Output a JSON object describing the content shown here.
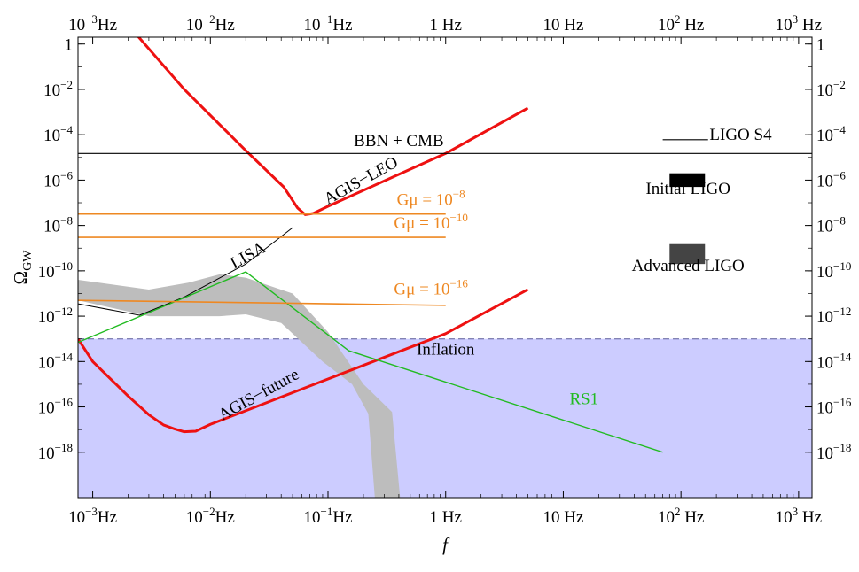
{
  "chart_data": {
    "type": "line",
    "title": "",
    "xlabel": "f",
    "ylabel": "Ω",
    "ylabel_sub": "GW",
    "x_scale": "log",
    "y_scale": "log",
    "xlim": [
      0.00075,
      1300
    ],
    "ylim": [
      1e-20,
      2
    ],
    "x_ticks": [
      {
        "value": 0.001,
        "base": "10",
        "exp": "−3",
        "unit": "Hz"
      },
      {
        "value": 0.01,
        "base": "10",
        "exp": "−2",
        "unit": "Hz"
      },
      {
        "value": 0.1,
        "base": "10",
        "exp": "−1",
        "unit": "Hz"
      },
      {
        "value": 1,
        "base": "1 Hz",
        "exp": "",
        "unit": ""
      },
      {
        "value": 10,
        "base": "10 Hz",
        "exp": "",
        "unit": ""
      },
      {
        "value": 100,
        "base": "10",
        "exp": "2",
        "unit": " Hz"
      },
      {
        "value": 1000,
        "base": "10",
        "exp": "3",
        "unit": " Hz"
      }
    ],
    "y_ticks": [
      {
        "value": 1,
        "base": "1",
        "exp": ""
      },
      {
        "value": 0.01,
        "base": "10",
        "exp": "−2"
      },
      {
        "value": 0.0001,
        "base": "10",
        "exp": "−4"
      },
      {
        "value": 1e-06,
        "base": "10",
        "exp": "−6"
      },
      {
        "value": 1e-08,
        "base": "10",
        "exp": "−8"
      },
      {
        "value": 1e-10,
        "base": "10",
        "exp": "−10"
      },
      {
        "value": 1e-12,
        "base": "10",
        "exp": "−12"
      },
      {
        "value": 1e-14,
        "base": "10",
        "exp": "−14"
      },
      {
        "value": 1e-16,
        "base": "10",
        "exp": "−16"
      },
      {
        "value": 1e-18,
        "base": "10",
        "exp": "−18"
      }
    ],
    "regions": [
      {
        "id": "inflation",
        "label": "Inflation",
        "type": "below",
        "y": 1e-13,
        "color": "#ccccff",
        "border": "#5a5a9a"
      }
    ],
    "bands": [
      {
        "id": "gray-band",
        "color": "#bdbdbd",
        "upper": [
          [
            0.00075,
            4e-11
          ],
          [
            0.003,
            1.5e-11
          ],
          [
            0.0065,
            3e-11
          ],
          [
            0.012,
            7e-11
          ],
          [
            0.02,
            5e-11
          ],
          [
            0.05,
            1e-11
          ],
          [
            0.1,
            2e-13
          ],
          [
            0.2,
            1e-15
          ],
          [
            0.35,
            6e-17
          ],
          [
            0.41,
            1e-20
          ]
        ],
        "lower": [
          [
            0.00075,
            5e-12
          ],
          [
            0.003,
            1e-12
          ],
          [
            0.012,
            1e-12
          ],
          [
            0.02,
            1.2e-12
          ],
          [
            0.04,
            5e-13
          ],
          [
            0.09,
            1e-14
          ],
          [
            0.16,
            1e-15
          ],
          [
            0.22,
            5e-17
          ],
          [
            0.25,
            1e-20
          ]
        ]
      }
    ],
    "series": [
      {
        "id": "agis-leo",
        "color": "#ee1111",
        "width": 3,
        "points": [
          [
            0.0023,
            3
          ],
          [
            0.006,
            0.01
          ],
          [
            0.02,
            2e-05
          ],
          [
            0.042,
            5e-07
          ],
          [
            0.055,
            6e-08
          ],
          [
            0.064,
            3e-08
          ],
          [
            0.075,
            3.4e-08
          ],
          [
            0.1,
            7e-08
          ],
          [
            0.5,
            3e-06
          ],
          [
            1,
            1.5e-05
          ],
          [
            5,
            0.0015
          ]
        ]
      },
      {
        "id": "agis-future",
        "color": "#ee1111",
        "width": 3,
        "points": [
          [
            0.00075,
            1e-13
          ],
          [
            0.001,
            1e-14
          ],
          [
            0.002,
            3e-16
          ],
          [
            0.003,
            4.5e-17
          ],
          [
            0.004,
            1.6e-17
          ],
          [
            0.005,
            1.05e-17
          ],
          [
            0.006,
            8e-18
          ],
          [
            0.0075,
            8.5e-18
          ],
          [
            0.01,
            1.7e-17
          ],
          [
            0.1,
            1.7e-15
          ],
          [
            1,
            1.7e-13
          ],
          [
            5,
            1.5e-11
          ]
        ]
      },
      {
        "id": "lisa",
        "color": "#000000",
        "width": 1,
        "points": [
          [
            0.00075,
            3.5e-12
          ],
          [
            0.0025,
            1.1e-12
          ],
          [
            0.006,
            7e-12
          ],
          [
            0.02,
            2e-10
          ],
          [
            0.05,
            8e-09
          ]
        ]
      },
      {
        "id": "rs1",
        "color": "#22bb22",
        "width": 1.4,
        "points": [
          [
            0.00075,
            7e-14
          ],
          [
            0.02,
            9e-11
          ],
          [
            0.15,
            3e-14
          ],
          [
            70,
            1e-18
          ]
        ]
      },
      {
        "id": "gmu-8",
        "color": "#ee8822",
        "width": 1.6,
        "points": [
          [
            0.00075,
            3.2e-08
          ],
          [
            1,
            3.2e-08
          ]
        ]
      },
      {
        "id": "gmu-10",
        "color": "#ee8822",
        "width": 1.6,
        "points": [
          [
            0.00075,
            3e-09
          ],
          [
            1,
            3e-09
          ]
        ]
      },
      {
        "id": "gmu-16",
        "color": "#ee8822",
        "width": 1.6,
        "points": [
          [
            0.00075,
            5e-12
          ],
          [
            1,
            3e-12
          ]
        ]
      },
      {
        "id": "bbn-cmb",
        "color": "#000000",
        "width": 1.1,
        "points": [
          [
            0.00075,
            1.5e-05
          ],
          [
            1300,
            1.5e-05
          ]
        ]
      },
      {
        "id": "ligo-s4-line",
        "color": "#000000",
        "width": 1.1,
        "points": [
          [
            70,
            6e-05
          ],
          [
            170,
            6e-05
          ]
        ]
      }
    ],
    "boxes": [
      {
        "id": "initial-ligo",
        "color": "#000000",
        "x": [
          80,
          160
        ],
        "y": [
          5e-07,
          2e-06
        ]
      },
      {
        "id": "advanced-ligo",
        "color": "#444444",
        "x": [
          80,
          160
        ],
        "y": [
          2e-10,
          1.5e-09
        ]
      }
    ],
    "annotations": [
      {
        "id": "bbn-cmb-label",
        "text": "BBN + CMB",
        "color": "#000000",
        "x": 0.4,
        "y": 3.2e-05,
        "anchor": "middle"
      },
      {
        "id": "ligo-s4-label",
        "text": "LIGO S4",
        "color": "#000000",
        "x": 175,
        "y": 6e-05,
        "anchor": "start"
      },
      {
        "id": "initial-ligo-label",
        "text": "Initial LIGO",
        "color": "#000000",
        "x": 115,
        "y": 2.5e-07,
        "anchor": "middle"
      },
      {
        "id": "advanced-ligo-label",
        "text": "Advanced LIGO",
        "color": "#000000",
        "x": 115,
        "y": 1e-10,
        "anchor": "middle"
      },
      {
        "id": "inflation-label",
        "text": "Inflation",
        "color": "#000000",
        "x": 1,
        "y": 2e-14,
        "anchor": "middle"
      },
      {
        "id": "rs1-label",
        "text": "RS1",
        "color": "#22bb22",
        "x": 15,
        "y": 1.3e-16,
        "anchor": "middle"
      },
      {
        "id": "lisa-label",
        "text": "LISA",
        "color": "#000000",
        "x": 0.022,
        "y": 3e-10,
        "anchor": "middle",
        "rotate": -29
      },
      {
        "id": "agis-leo-label",
        "text": "AGIS−LEO",
        "color": "#000000",
        "x": 0.2,
        "y": 6e-07,
        "anchor": "middle",
        "rotate": -29
      },
      {
        "id": "agis-future-label",
        "text": "AGIS−future",
        "color": "#000000",
        "x": 0.027,
        "y": 2.2e-16,
        "anchor": "middle",
        "rotate": -29
      },
      {
        "id": "gmu-8-label",
        "text": "Gμ = 10",
        "sup": "−8",
        "color": "#ee8822",
        "x": 0.75,
        "y": 8e-08,
        "anchor": "middle"
      },
      {
        "id": "gmu-10-label",
        "text": "Gμ = 10",
        "sup": "−10",
        "color": "#ee8822",
        "x": 0.75,
        "y": 7.5e-09,
        "anchor": "middle"
      },
      {
        "id": "gmu-16-label",
        "text": "Gμ = 10",
        "sup": "−16",
        "color": "#ee8822",
        "x": 0.75,
        "y": 9e-12,
        "anchor": "middle"
      }
    ]
  }
}
